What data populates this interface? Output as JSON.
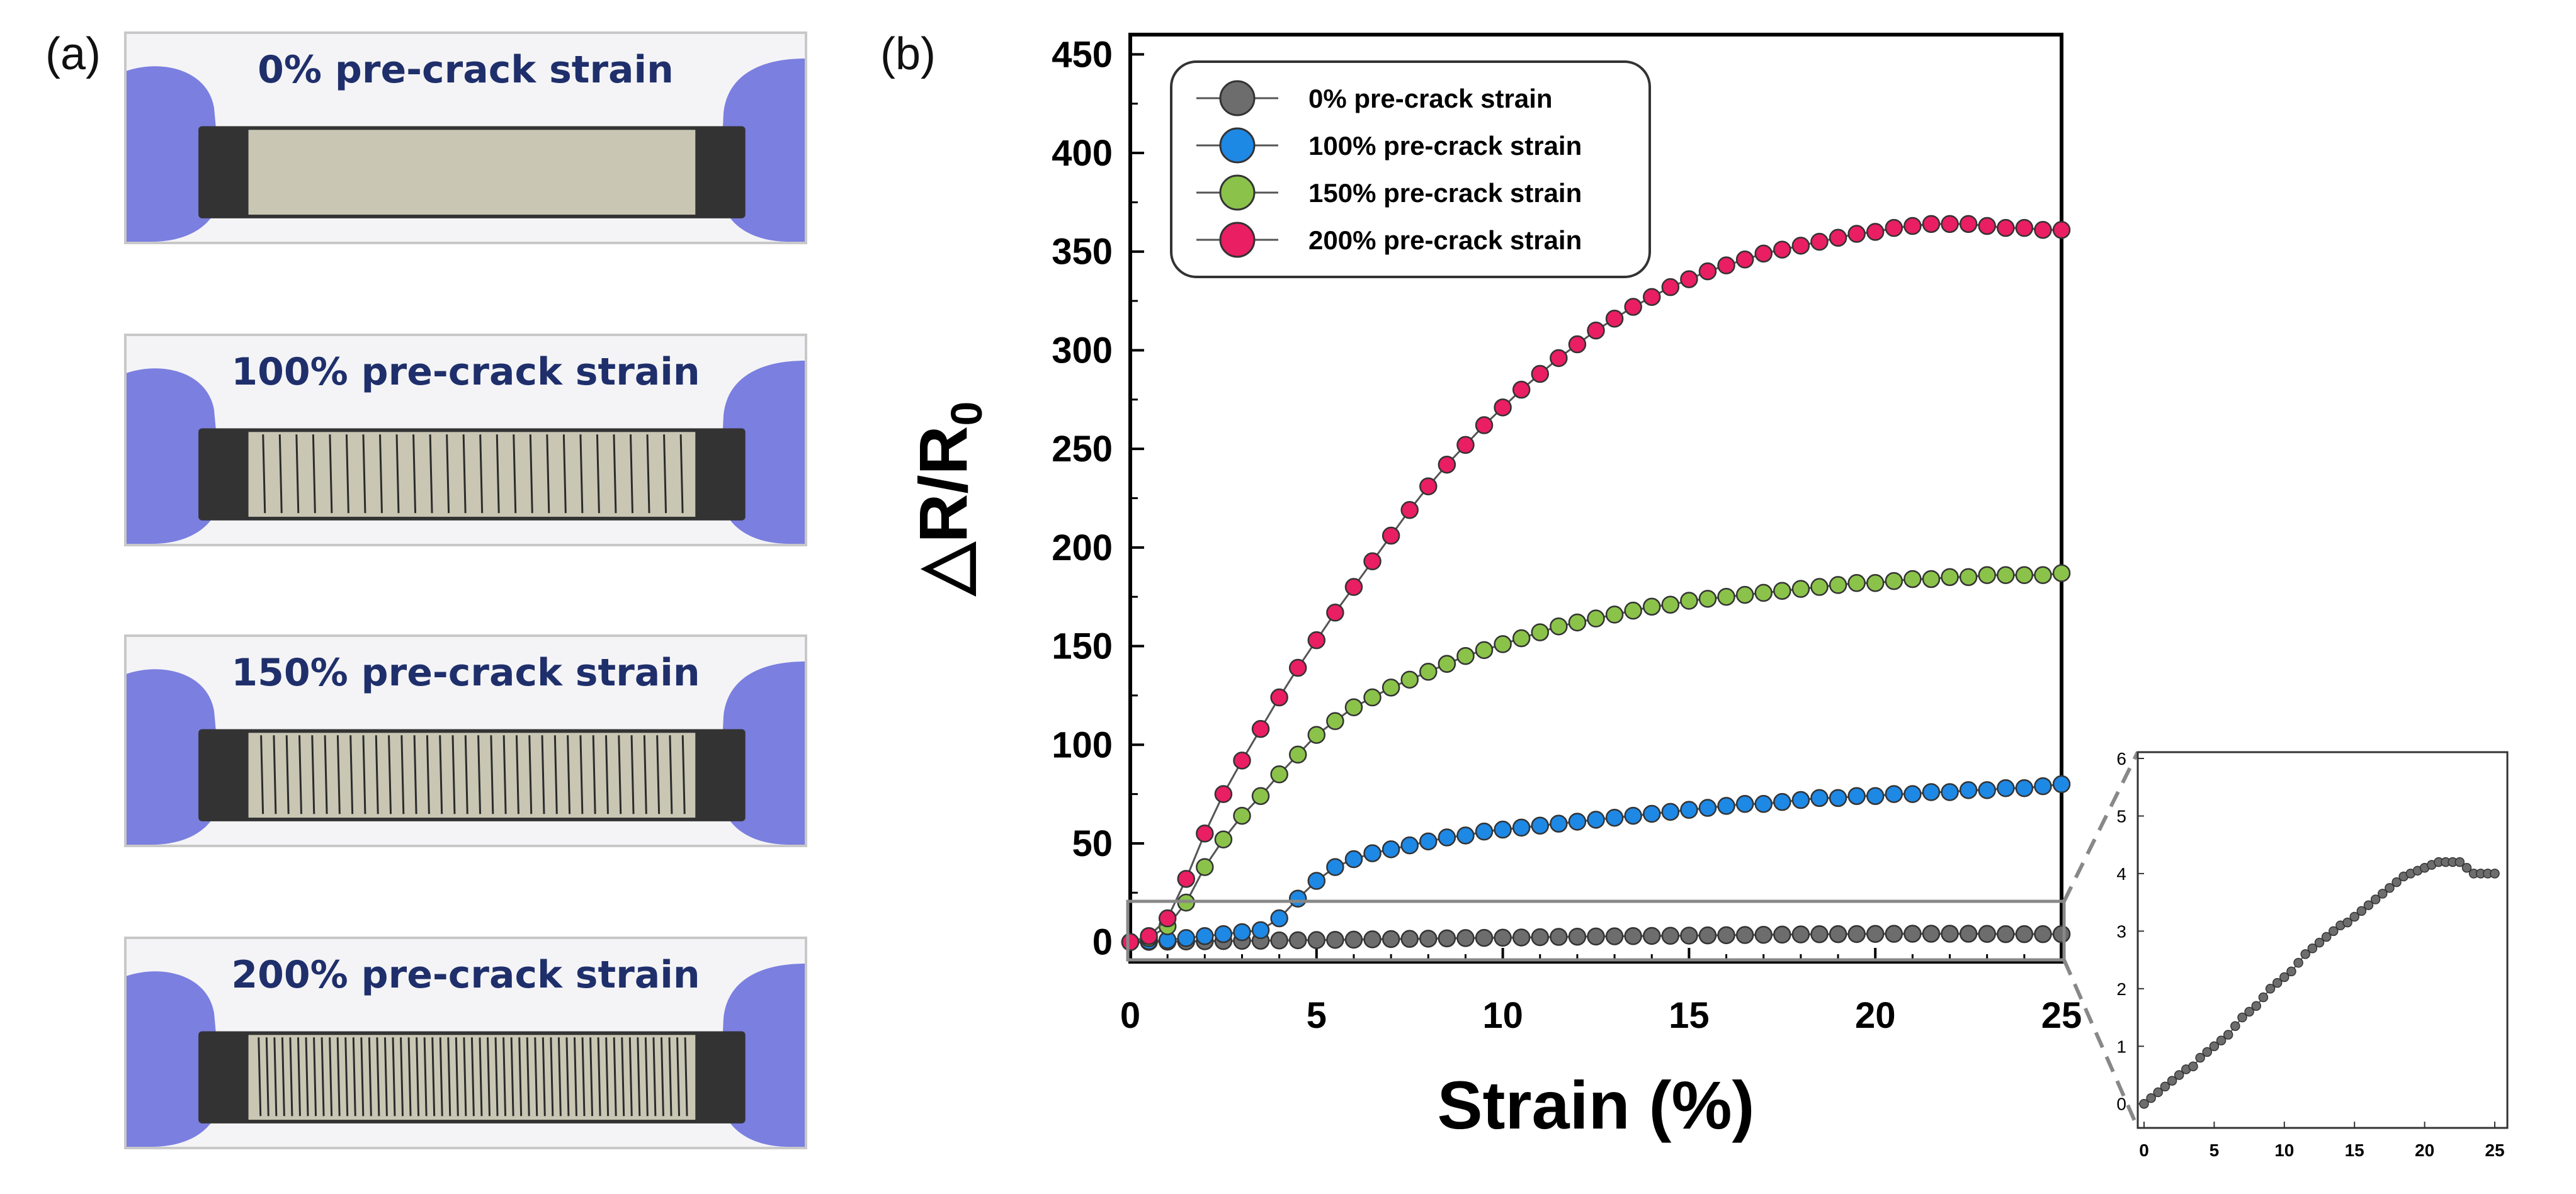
{
  "panels": {
    "a_label": "(a)",
    "b_label": "(b)"
  },
  "photos": [
    {
      "caption": "0% pre-crack strain",
      "cracks": 0
    },
    {
      "caption": "100% pre-crack strain",
      "cracks": 26
    },
    {
      "caption": "150% pre-crack strain",
      "cracks": 34
    },
    {
      "caption": "200% pre-crack strain",
      "cracks": 55
    }
  ],
  "colors": {
    "s0": "#6d6d6d",
    "s100": "#1e88e5",
    "s150": "#8bc34a",
    "s200": "#e91e63",
    "caption": "#1f2f6b",
    "glove": "#7b7fe0",
    "fabric_frame": "#333333",
    "fabric": "#c9c6b4"
  },
  "chart_data": [
    {
      "type": "scatter",
      "title": "",
      "xlabel": "Strain (%)",
      "ylabel": "△R/R0",
      "xlim": [
        0,
        25
      ],
      "ylim": [
        -10,
        460
      ],
      "xticks": [
        0,
        5,
        10,
        15,
        20,
        25
      ],
      "yticks": [
        0,
        50,
        100,
        150,
        200,
        250,
        300,
        350,
        400,
        450
      ],
      "legend_position": "top-left",
      "grid": false,
      "x": [
        0,
        0.5,
        1,
        1.5,
        2,
        2.5,
        3,
        3.5,
        4,
        4.5,
        5,
        5.5,
        6,
        6.5,
        7,
        7.5,
        8,
        8.5,
        9,
        9.5,
        10,
        10.5,
        11,
        11.5,
        12,
        12.5,
        13,
        13.5,
        14,
        14.5,
        15,
        15.5,
        16,
        16.5,
        17,
        17.5,
        18,
        18.5,
        19,
        19.5,
        20,
        20.5,
        21,
        21.5,
        22,
        22.5,
        23,
        23.5,
        24,
        24.5,
        25
      ],
      "series": [
        {
          "name": "0% pre-crack strain",
          "color_key": "s0",
          "values": [
            0,
            0.1,
            0.2,
            0.3,
            0.4,
            0.5,
            0.6,
            0.65,
            0.8,
            0.9,
            1.0,
            1.1,
            1.2,
            1.35,
            1.5,
            1.6,
            1.7,
            1.85,
            2.0,
            2.1,
            2.2,
            2.3,
            2.45,
            2.6,
            2.7,
            2.8,
            2.9,
            3.0,
            3.1,
            3.15,
            3.25,
            3.35,
            3.45,
            3.55,
            3.65,
            3.75,
            3.85,
            3.95,
            4.0,
            4.05,
            4.1,
            4.15,
            4.2,
            4.2,
            4.2,
            4.2,
            4.1,
            4.0,
            4.0,
            4.0,
            4.0
          ]
        },
        {
          "name": "100% pre-crack strain",
          "color_key": "s100",
          "values": [
            0,
            0.5,
            1,
            2,
            3,
            4,
            5,
            6,
            12,
            22,
            31,
            38,
            42,
            45,
            47,
            49,
            51,
            53,
            54,
            56,
            57,
            58,
            59,
            60,
            61,
            62,
            63,
            64,
            65,
            66,
            67,
            68,
            69,
            70,
            70,
            71,
            72,
            73,
            73,
            74,
            74,
            75,
            75,
            76,
            76,
            77,
            77,
            78,
            78,
            79,
            80
          ]
        },
        {
          "name": "150% pre-crack strain",
          "color_key": "s150",
          "values": [
            0,
            2,
            8,
            20,
            38,
            52,
            64,
            74,
            85,
            95,
            105,
            112,
            119,
            124,
            129,
            133,
            137,
            141,
            145,
            148,
            151,
            154,
            157,
            160,
            162,
            164,
            166,
            168,
            170,
            171,
            173,
            174,
            175,
            176,
            177,
            178,
            179,
            180,
            181,
            182,
            182,
            183,
            184,
            184,
            185,
            185,
            186,
            186,
            186,
            186,
            187
          ]
        },
        {
          "name": "200% pre-crack strain",
          "color_key": "s200",
          "values": [
            0,
            3,
            12,
            32,
            55,
            75,
            92,
            108,
            124,
            139,
            153,
            167,
            180,
            193,
            206,
            219,
            231,
            242,
            252,
            262,
            271,
            280,
            288,
            296,
            303,
            310,
            316,
            322,
            327,
            332,
            336,
            340,
            343,
            346,
            349,
            351,
            353,
            355,
            357,
            359,
            360,
            362,
            363,
            364,
            364,
            364,
            363,
            362,
            362,
            361,
            361
          ]
        }
      ]
    },
    {
      "type": "scatter",
      "title": "",
      "xlabel": "",
      "ylabel": "",
      "xlim": [
        0,
        25
      ],
      "ylim": [
        -0.2,
        6
      ],
      "xticks": [
        0,
        5,
        10,
        15,
        20,
        25
      ],
      "yticks": [
        0,
        1,
        2,
        3,
        4,
        5,
        6
      ],
      "grid": false,
      "series": [
        {
          "name": "",
          "color_key": "s0",
          "x": [
            0,
            0.5,
            1,
            1.5,
            2,
            2.5,
            3,
            3.5,
            4,
            4.5,
            5,
            5.5,
            6,
            6.5,
            7,
            7.5,
            8,
            8.5,
            9,
            9.5,
            10,
            10.5,
            11,
            11.5,
            12,
            12.5,
            13,
            13.5,
            14,
            14.5,
            15,
            15.5,
            16,
            16.5,
            17,
            17.5,
            18,
            18.5,
            19,
            19.5,
            20,
            20.5,
            21,
            21.5,
            22,
            22.5,
            23,
            23.5,
            24,
            24.5,
            25
          ],
          "values": [
            0,
            0.1,
            0.2,
            0.3,
            0.4,
            0.5,
            0.6,
            0.65,
            0.8,
            0.9,
            1.0,
            1.1,
            1.2,
            1.35,
            1.5,
            1.6,
            1.7,
            1.85,
            2.0,
            2.1,
            2.2,
            2.3,
            2.45,
            2.6,
            2.7,
            2.8,
            2.9,
            3.0,
            3.1,
            3.15,
            3.25,
            3.35,
            3.45,
            3.55,
            3.65,
            3.75,
            3.85,
            3.95,
            4.0,
            4.05,
            4.1,
            4.15,
            4.2,
            4.2,
            4.2,
            4.2,
            4.1,
            4.0,
            4.0,
            4.0,
            4.0
          ]
        }
      ]
    }
  ]
}
